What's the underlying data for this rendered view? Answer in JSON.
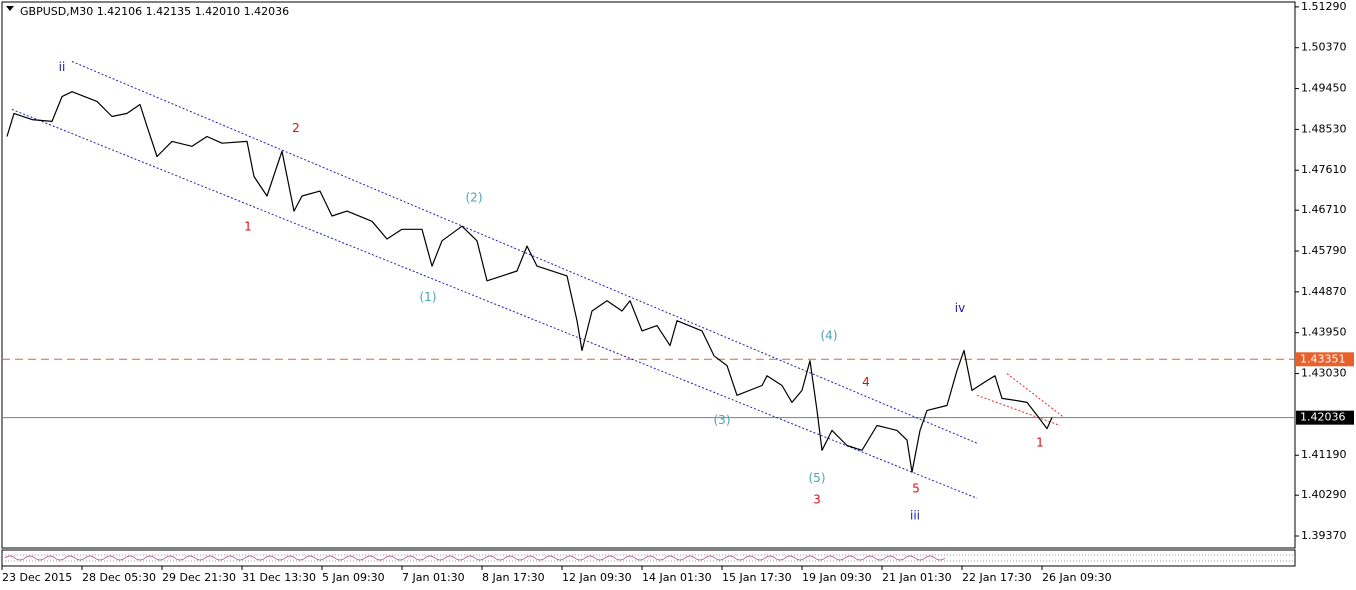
{
  "chart_data": {
    "type": "line",
    "title": "GBPUSD,M30  1.42106 1.42135 1.42010 1.42036",
    "color": "#000000",
    "x": [
      5,
      12,
      30,
      50,
      60,
      70,
      95,
      110,
      125,
      138,
      145,
      155,
      170,
      190,
      205,
      220,
      245,
      252,
      265,
      280,
      292,
      300,
      318,
      330,
      345,
      370,
      385,
      400,
      420,
      430,
      440,
      460,
      475,
      485,
      500,
      515,
      525,
      535,
      565,
      575,
      580,
      590,
      605,
      620,
      628,
      640,
      655,
      668,
      675,
      700,
      712,
      725,
      735,
      760,
      765,
      780,
      790,
      800,
      808,
      815,
      820,
      830,
      845,
      860,
      875,
      895,
      905,
      910,
      918,
      925,
      945,
      955,
      962,
      970,
      985,
      993,
      1000,
      1015,
      1025,
      1035,
      1045,
      1050
    ],
    "values": [
      1.4837,
      1.4889,
      1.4875,
      1.4871,
      1.4927,
      1.4938,
      1.4916,
      1.4882,
      1.4889,
      1.4909,
      1.486,
      1.4792,
      1.4826,
      1.4815,
      1.4837,
      1.4822,
      1.4826,
      1.4747,
      1.4703,
      1.4804,
      1.4669,
      1.4703,
      1.4714,
      1.4658,
      1.4669,
      1.4646,
      1.4606,
      1.4628,
      1.4628,
      1.4545,
      1.4602,
      1.4635,
      1.4602,
      1.4512,
      1.4523,
      1.4534,
      1.459,
      1.4545,
      1.4523,
      1.4422,
      1.4355,
      1.4444,
      1.4467,
      1.4444,
      1.4467,
      1.4399,
      1.4411,
      1.4366,
      1.4422,
      1.4399,
      1.4343,
      1.4321,
      1.4254,
      1.4276,
      1.4298,
      1.4276,
      1.4238,
      1.4265,
      1.4332,
      1.422,
      1.413,
      1.4175,
      1.4141,
      1.413,
      1.4186,
      1.4175,
      1.4153,
      1.4081,
      1.4175,
      1.422,
      1.4231,
      1.431,
      1.4355,
      1.4265,
      1.4287,
      1.4298,
      1.4247,
      1.4242,
      1.4238,
      1.4209,
      1.4179,
      1.4204
    ],
    "xlim": [
      0,
      1293
    ],
    "ylim": [
      1.391,
      1.514
    ],
    "xticks": [
      {
        "value": 0,
        "label": "23 Dec 2015"
      },
      {
        "value": 80,
        "label": "28 Dec 05:30"
      },
      {
        "value": 160,
        "label": "29 Dec 21:30"
      },
      {
        "value": 240,
        "label": "31 Dec 13:30"
      },
      {
        "value": 320,
        "label": "5 Jan 09:30"
      },
      {
        "value": 400,
        "label": "7 Jan 01:30"
      },
      {
        "value": 480,
        "label": "8 Jan 17:30"
      },
      {
        "value": 560,
        "label": "12 Jan 09:30"
      },
      {
        "value": 640,
        "label": "14 Jan 01:30"
      },
      {
        "value": 720,
        "label": "15 Jan 17:30"
      },
      {
        "value": 800,
        "label": "19 Jan 09:30"
      },
      {
        "value": 880,
        "label": "21 Jan 01:30"
      },
      {
        "value": 960,
        "label": "22 Jan 17:30"
      },
      {
        "value": 1040,
        "label": "26 Jan 09:30"
      }
    ],
    "yticks": [
      {
        "value": 1.5129,
        "label": "1.51290"
      },
      {
        "value": 1.5037,
        "label": "1.50370"
      },
      {
        "value": 1.4945,
        "label": "1.49450"
      },
      {
        "value": 1.4853,
        "label": "1.48530"
      },
      {
        "value": 1.4761,
        "label": "1.47610"
      },
      {
        "value": 1.4671,
        "label": "1.46710"
      },
      {
        "value": 1.4579,
        "label": "1.45790"
      },
      {
        "value": 1.4487,
        "label": "1.44870"
      },
      {
        "value": 1.4395,
        "label": "1.43950"
      },
      {
        "value": 1.4303,
        "label": "1.43030"
      },
      {
        "value": 1.4119,
        "label": "1.41190"
      },
      {
        "value": 1.4029,
        "label": "1.40290"
      },
      {
        "value": 1.3937,
        "label": "1.39370"
      }
    ],
    "hlines": [
      {
        "value": 1.43351,
        "label": "1.43351",
        "color": "#e8602c",
        "dashed": true
      },
      {
        "value": 1.42036,
        "label": "1.42036",
        "color": "#708090",
        "dashed": false
      }
    ],
    "channels": [
      {
        "color": "#1f1fb4",
        "x": [
          70,
          975
        ],
        "y": [
          1.5006,
          1.4146
        ]
      },
      {
        "color": "#1f1fb4",
        "x": [
          10,
          975
        ],
        "y": [
          1.4898,
          1.4022
        ]
      },
      {
        "color": "#e03030",
        "x": [
          1005,
          1062
        ],
        "y": [
          1.4303,
          1.4204
        ]
      },
      {
        "color": "#e03030",
        "x": [
          975,
          1058
        ],
        "y": [
          1.4254,
          1.4186
        ]
      }
    ],
    "annotations": [
      {
        "text": "ii",
        "color": "#1a1aa6",
        "x": 60,
        "y": 1.4992
      },
      {
        "text": "2",
        "color": "#e01010",
        "x": 294,
        "y": 1.4855
      },
      {
        "text": "1",
        "color": "#e01010",
        "x": 246,
        "y": 1.4633
      },
      {
        "text": "(2)",
        "color": "#4aa6b0",
        "x": 472,
        "y": 1.4698
      },
      {
        "text": "(1)",
        "color": "#4aa6b0",
        "x": 426,
        "y": 1.4474
      },
      {
        "text": "(4)",
        "color": "#4aa6b0",
        "x": 827,
        "y": 1.4388
      },
      {
        "text": "iv",
        "color": "#1a1aa6",
        "x": 958,
        "y": 1.4449
      },
      {
        "text": "4",
        "color": "#e01010",
        "x": 864,
        "y": 1.4283
      },
      {
        "text": "(3)",
        "color": "#4aa6b0",
        "x": 720,
        "y": 1.4197
      },
      {
        "text": "(5)",
        "color": "#4aa6b0",
        "x": 815,
        "y": 1.4067
      },
      {
        "text": "3",
        "color": "#e01010",
        "x": 815,
        "y": 1.4018
      },
      {
        "text": "5",
        "color": "#e01010",
        "x": 914,
        "y": 1.4043
      },
      {
        "text": "iii",
        "color": "#1a1aa6",
        "x": 913,
        "y": 1.3982
      },
      {
        "text": "1",
        "color": "#e01010",
        "x": 1038,
        "y": 1.4146
      }
    ]
  }
}
